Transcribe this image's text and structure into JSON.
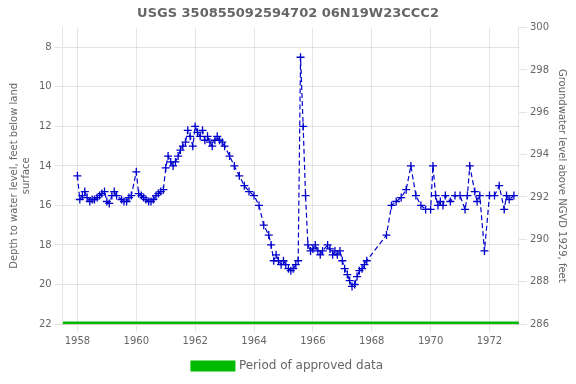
{
  "chart_data": {
    "type": "line",
    "title": "USGS 350855092594702 06N19W23CCC2",
    "ylabel": "Depth to water level, feet below land\nsurface",
    "y2label": "Groundwater level above NGVD 1929, feet",
    "xlim": [
      1957.5,
      1973.0
    ],
    "xticks": [
      1958,
      1960,
      1962,
      1964,
      1966,
      1968,
      1970,
      1972
    ],
    "ylim": [
      22,
      7
    ],
    "yticks": [
      8,
      10,
      12,
      14,
      16,
      18,
      20,
      22
    ],
    "y2lim": [
      286,
      300
    ],
    "y2ticks": [
      286,
      288,
      290,
      292,
      294,
      296,
      298,
      300
    ],
    "grid": true,
    "legend": "bottom",
    "series": [
      {
        "color": "#0000cc",
        "marker": "plus",
        "line_style": "dashed",
        "x": [
          1958.0,
          1958.08,
          1958.17,
          1958.25,
          1958.33,
          1958.42,
          1958.5,
          1958.58,
          1958.67,
          1958.75,
          1958.83,
          1958.92,
          1959.0,
          1959.08,
          1959.17,
          1959.25,
          1959.33,
          1959.5,
          1959.58,
          1959.67,
          1959.75,
          1959.83,
          1960.0,
          1960.08,
          1960.17,
          1960.25,
          1960.33,
          1960.42,
          1960.5,
          1960.58,
          1960.67,
          1960.75,
          1960.83,
          1960.92,
          1961.0,
          1961.08,
          1961.17,
          1961.25,
          1961.33,
          1961.42,
          1961.5,
          1961.58,
          1961.67,
          1961.75,
          1961.83,
          1961.92,
          1962.0,
          1962.08,
          1962.17,
          1962.25,
          1962.33,
          1962.42,
          1962.5,
          1962.58,
          1962.67,
          1962.75,
          1962.83,
          1962.92,
          1963.0,
          1963.17,
          1963.33,
          1963.5,
          1963.67,
          1963.83,
          1964.0,
          1964.17,
          1964.33,
          1964.5,
          1964.58,
          1964.67,
          1964.75,
          1964.83,
          1964.92,
          1965.0,
          1965.08,
          1965.17,
          1965.25,
          1965.33,
          1965.42,
          1965.5,
          1965.58,
          1965.67,
          1965.75,
          1965.83,
          1965.92,
          1966.0,
          1966.08,
          1966.17,
          1966.25,
          1966.33,
          1966.5,
          1966.58,
          1966.67,
          1966.75,
          1966.83,
          1966.92,
          1967.0,
          1967.08,
          1967.17,
          1967.25,
          1967.33,
          1967.42,
          1967.5,
          1967.58,
          1967.67,
          1967.75,
          1967.83,
          1968.5,
          1968.67,
          1968.83,
          1969.0,
          1969.17,
          1969.33,
          1969.5,
          1969.67,
          1969.83,
          1970.0,
          1970.08,
          1970.17,
          1970.25,
          1970.33,
          1970.42,
          1970.5,
          1970.67,
          1970.83,
          1971.0,
          1971.17,
          1971.25,
          1971.33,
          1971.5,
          1971.58,
          1971.67,
          1971.83,
          1972.0,
          1972.17,
          1972.33,
          1972.5,
          1972.58,
          1972.67,
          1972.83
        ],
        "values": [
          14.5,
          15.7,
          15.5,
          15.3,
          15.6,
          15.8,
          15.7,
          15.7,
          15.6,
          15.5,
          15.4,
          15.3,
          15.8,
          15.9,
          15.5,
          15.3,
          15.5,
          15.7,
          15.8,
          15.8,
          15.6,
          15.5,
          14.3,
          15.4,
          15.5,
          15.6,
          15.7,
          15.8,
          15.8,
          15.7,
          15.5,
          15.4,
          15.3,
          15.2,
          14.1,
          13.5,
          13.8,
          14.0,
          13.8,
          13.5,
          13.2,
          13.0,
          12.8,
          12.2,
          12.5,
          13.0,
          12.0,
          12.3,
          12.5,
          12.2,
          12.7,
          12.5,
          12.8,
          13.0,
          12.7,
          12.5,
          12.7,
          12.8,
          13.0,
          13.5,
          14.0,
          14.5,
          15.0,
          15.3,
          15.5,
          16.0,
          17.0,
          17.5,
          18.0,
          18.8,
          18.5,
          18.8,
          19.0,
          18.8,
          19.0,
          19.2,
          19.3,
          19.2,
          19.0,
          18.8,
          8.5,
          12.0,
          15.5,
          18.0,
          18.3,
          18.2,
          18.0,
          18.3,
          18.5,
          18.3,
          18.0,
          18.2,
          18.5,
          18.3,
          18.5,
          18.3,
          18.8,
          19.2,
          19.5,
          19.8,
          20.1,
          20.0,
          19.6,
          19.3,
          19.2,
          19.0,
          18.8,
          17.5,
          16.0,
          15.8,
          15.6,
          15.2,
          14.0,
          15.5,
          16.0,
          16.2,
          16.2,
          14.0,
          15.5,
          16.0,
          15.8,
          16.0,
          15.5,
          15.8,
          15.5,
          15.5,
          16.2,
          15.5,
          14.0,
          15.3,
          15.8,
          15.5,
          18.3,
          15.5,
          15.5,
          15.0,
          16.2,
          15.5,
          15.7,
          15.5
        ]
      },
      {
        "name": "Period of approved data",
        "color": "#00bb00",
        "marker": "none",
        "line_style": "solid",
        "x": [
          1957.5,
          1973.0
        ],
        "values": [
          22,
          22
        ]
      }
    ]
  }
}
